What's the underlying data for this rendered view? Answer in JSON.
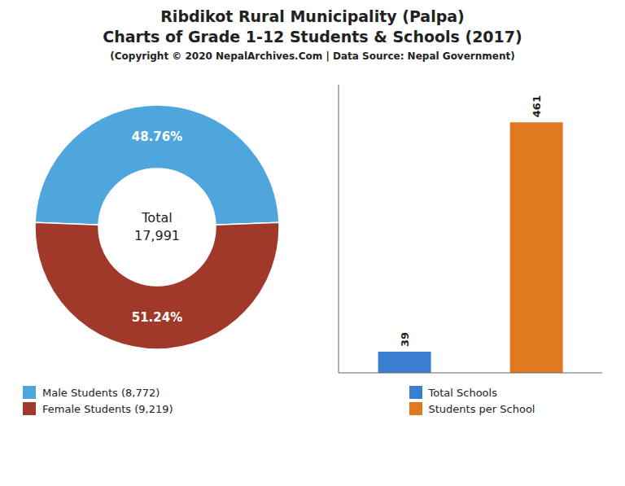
{
  "title": "Ribdikot Rural Municipality (Palpa)\nCharts of Grade 1-12 Students & Schools (2017)",
  "subtitle": "(Copyright © 2020 NepalArchives.Com | Data Source: Nepal Government)",
  "chart_data": [
    {
      "type": "donut",
      "categories": [
        "Male Students (8,772)",
        "Female Students (9,219)"
      ],
      "values": [
        48.76,
        51.24
      ],
      "value_labels": [
        "48.76%",
        "51.24%"
      ],
      "colors": [
        "#4ea6dc",
        "#a0392a"
      ],
      "data_labels": true,
      "annotations": [
        "Total",
        "17,991"
      ],
      "legend": "lower left"
    },
    {
      "type": "bar",
      "categories": [
        "Total Schools",
        "Students per School"
      ],
      "values": [
        39,
        461
      ],
      "colors": [
        "#3a7ecf",
        "#e07820"
      ],
      "ylim": [
        0,
        530.15
      ],
      "yticks": [],
      "tick_labels": false,
      "data_labels": true,
      "grid": false,
      "legend": "lower center"
    }
  ]
}
